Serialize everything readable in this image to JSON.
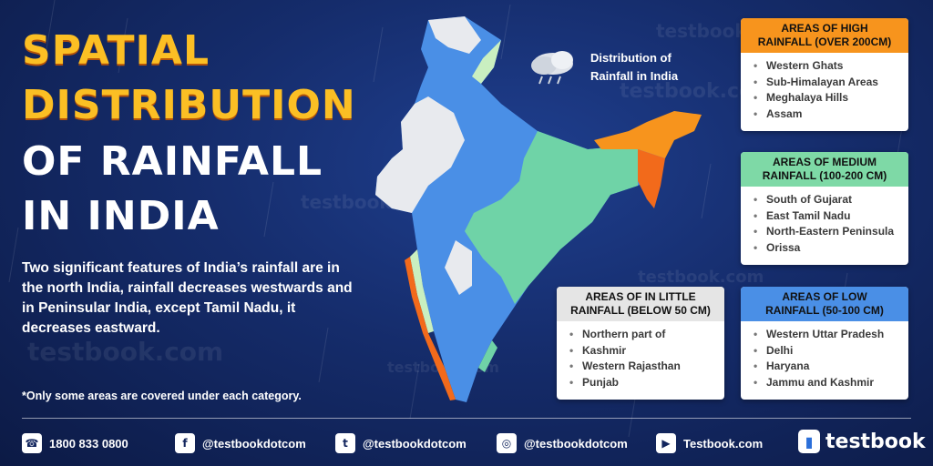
{
  "title": {
    "line1": "SPATIAL",
    "line2": "DISTRIBUTION",
    "line3": "OF RAINFALL",
    "line4": "IN INDIA"
  },
  "intro": "Two significant features of India’s rainfall are in the north India, rainfall decreases westwards and in Peninsular India, except Tamil Nadu, it decreases eastward.",
  "note": "*Only some areas are covered under each category.",
  "map_label": {
    "line1": "Distribution of",
    "line2": "Rainfall in India"
  },
  "watermark": "testbook.com",
  "categories": {
    "high": {
      "heading1": "AREAS OF HIGH",
      "heading2": "RAINFALL (OVER 200CM)",
      "color": "#f7941d",
      "items": [
        "Western Ghats",
        "Sub-Himalayan Areas",
        "Meghalaya Hills",
        "Assam"
      ]
    },
    "medium": {
      "heading1": "AREAS OF MEDIUM",
      "heading2": "RAINFALL (100-200 CM)",
      "color": "#7ed9a6",
      "items": [
        "South of Gujarat",
        "East Tamil Nadu",
        "North-Eastern Peninsula",
        "Orissa"
      ]
    },
    "little": {
      "heading1": "AREAS OF IN LITTLE",
      "heading2": "RAINFALL (BELOW 50 CM)",
      "color": "#e5e5e5",
      "items": [
        "Northern part of",
        "Kashmir",
        "Western Rajasthan",
        "Punjab"
      ]
    },
    "low": {
      "heading1": "AREAS OF LOW",
      "heading2": "RAINFALL (50-100 CM)",
      "color": "#4a8fe6",
      "items": [
        "Western Uttar Pradesh",
        "Delhi",
        "Haryana",
        "Jammu and Kashmir"
      ]
    }
  },
  "footer": {
    "phone": "1800 833 0800",
    "facebook": "@testbookdotcom",
    "twitter": "@testbookdotcom",
    "instagram": "@testbookdotcom",
    "youtube": "Testbook.com",
    "logo_text": "testbook"
  },
  "icons": {
    "phone": "phone-icon",
    "facebook": "facebook-icon",
    "twitter": "twitter-icon",
    "instagram": "instagram-icon",
    "youtube": "youtube-icon",
    "cloud": "rain-cloud-icon"
  }
}
